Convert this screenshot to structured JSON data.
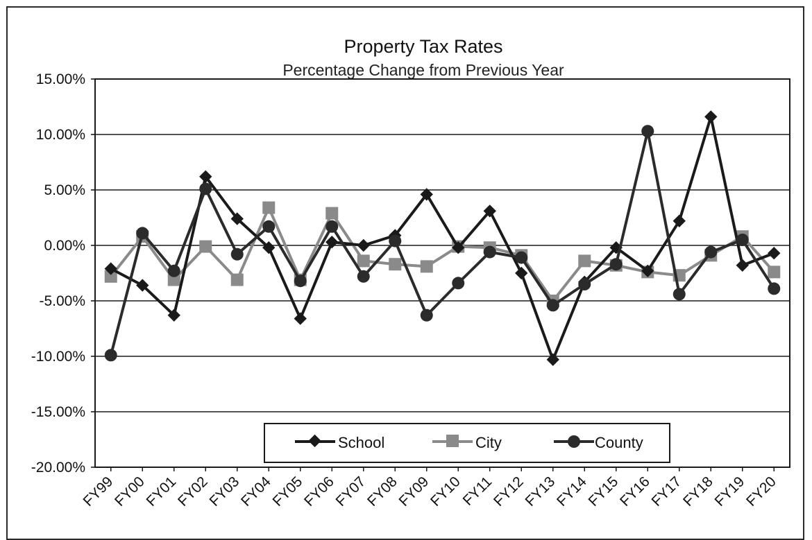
{
  "chart_data": {
    "type": "line",
    "title": "Property Tax Rates",
    "subtitle": "Percentage Change from Previous Year",
    "xlabel": "",
    "ylabel": "",
    "categories": [
      "FY99",
      "FY00",
      "FY01",
      "FY02",
      "FY03",
      "FY04",
      "FY05",
      "FY06",
      "FY07",
      "FY08",
      "FY09",
      "FY10",
      "FY11",
      "FY12",
      "FY13",
      "FY14",
      "FY15",
      "FY16",
      "FY17",
      "FY18",
      "FY19",
      "FY20"
    ],
    "y_ticks": [
      "15.00%",
      "10.00%",
      "5.00%",
      "0.00%",
      "-5.00%",
      "-10.00%",
      "-15.00%",
      "-20.00%"
    ],
    "ylim": [
      -20,
      15
    ],
    "grid": true,
    "legend_position": "bottom-center",
    "series": [
      {
        "name": "School",
        "marker": "diamond",
        "color": "#1a1a1a",
        "values": [
          -2.1,
          -3.6,
          -6.3,
          6.2,
          2.4,
          -0.2,
          -6.6,
          0.3,
          0.0,
          0.9,
          4.6,
          -0.2,
          3.1,
          -2.5,
          -10.3,
          -3.3,
          -0.2,
          -2.3,
          2.2,
          11.6,
          -1.8,
          -0.7
        ]
      },
      {
        "name": "City",
        "marker": "square",
        "color": "#8a8a8a",
        "values": [
          -2.8,
          0.8,
          -3.1,
          -0.1,
          -3.1,
          3.4,
          -3.1,
          2.9,
          -1.4,
          -1.7,
          -1.9,
          -0.1,
          -0.2,
          -0.9,
          -5.0,
          -1.4,
          -1.8,
          -2.4,
          -2.7,
          -0.9,
          0.8,
          -2.4
        ]
      },
      {
        "name": "County",
        "marker": "circle",
        "color": "#2b2b2b",
        "values": [
          -9.9,
          1.1,
          -2.3,
          5.1,
          -0.8,
          1.7,
          -3.2,
          1.7,
          -2.8,
          0.4,
          -6.3,
          -3.4,
          -0.6,
          -1.1,
          -5.4,
          -3.5,
          -1.7,
          10.3,
          -4.4,
          -0.6,
          0.5,
          -3.9
        ]
      }
    ]
  }
}
